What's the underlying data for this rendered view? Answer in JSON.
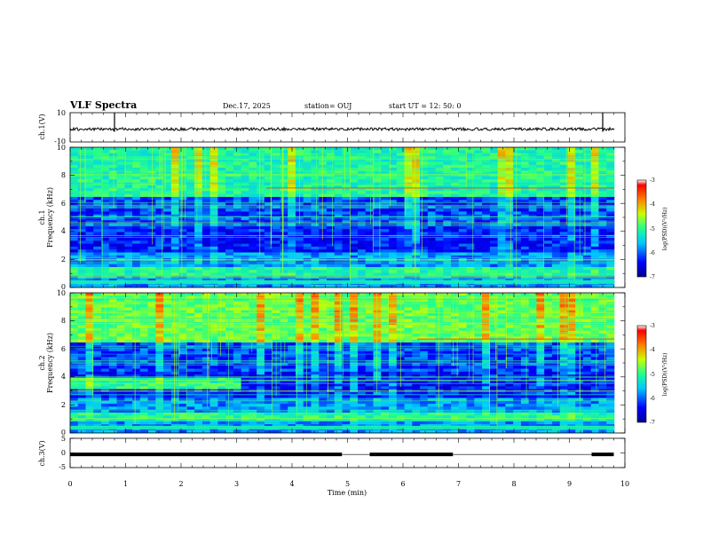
{
  "header": {
    "title": "VLF Spectra",
    "date": "Dec.17, 2025",
    "station": "station= OUJ",
    "start_ut": "start  UT  =   12: 50: 0"
  },
  "chart_data": [
    {
      "type": "line",
      "name": "ch1-waveform",
      "ylabel": "ch.1(V)",
      "ylim": [
        -10,
        10
      ],
      "yticks": [
        "10",
        "-10"
      ],
      "xlim": [
        0,
        10
      ],
      "baseline": 0,
      "spikes_min": [
        0.8,
        9.6
      ]
    },
    {
      "type": "heatmap",
      "name": "ch1-spectrogram",
      "ylabel_channel": "ch.1",
      "ylabel": "Frequency  (kHz)",
      "ylim": [
        0,
        10
      ],
      "yticks": [
        "0",
        "2",
        "4",
        "6",
        "8",
        "10"
      ],
      "xlim": [
        0,
        10
      ],
      "colorbar": {
        "label": "log(PSD)(V²/Hz)",
        "ticks": [
          "-3",
          "-4",
          "-5",
          "-6",
          "-7"
        ],
        "range": [
          -7,
          -3
        ]
      }
    },
    {
      "type": "heatmap",
      "name": "ch2-spectrogram",
      "ylabel_channel": "ch.2",
      "ylabel": "Frequency  (kHz)",
      "ylim": [
        0,
        10
      ],
      "yticks": [
        "0",
        "2",
        "4",
        "6",
        "8",
        "10"
      ],
      "xlim": [
        0,
        10
      ],
      "colorbar": {
        "label": "log(PSD)(V²/Hz)",
        "ticks": [
          "-3",
          "-4",
          "-5",
          "-6",
          "-7"
        ],
        "range": [
          -7,
          -3
        ]
      }
    },
    {
      "type": "line",
      "name": "ch3-waveform",
      "ylabel": "ch.3(V)",
      "ylim": [
        -5,
        5
      ],
      "yticks": [
        "5",
        "0",
        "-5"
      ],
      "xlim": [
        0,
        10
      ],
      "level": -0.5,
      "gaps_min": [
        [
          4.9,
          5.4
        ],
        [
          6.9,
          9.4
        ]
      ]
    }
  ],
  "xaxis": {
    "label": "Time  (min)",
    "ticks": [
      "0",
      "1",
      "2",
      "3",
      "4",
      "5",
      "6",
      "7",
      "8",
      "9",
      "10"
    ]
  },
  "colors": {
    "axis": "#000000",
    "background": "#ffffff"
  }
}
